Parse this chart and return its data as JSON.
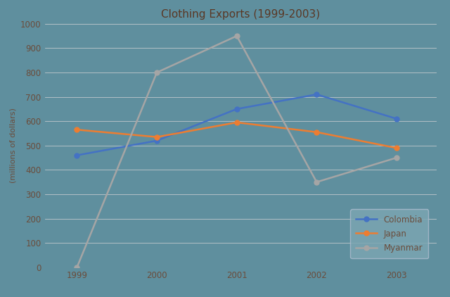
{
  "title": "Clothing Exports (1999-2003)",
  "ylabel": "(millions of dollars)",
  "years": [
    1999,
    2000,
    2001,
    2002,
    2003
  ],
  "series": {
    "Colombia": {
      "values": [
        460,
        520,
        650,
        710,
        610
      ],
      "color": "#4472c4",
      "marker": "o"
    },
    "Japan": {
      "values": [
        565,
        535,
        595,
        555,
        490
      ],
      "color": "#ed7d31",
      "marker": "o"
    },
    "Myanmar": {
      "values": [
        0,
        800,
        950,
        350,
        450
      ],
      "color": "#a5a5a5",
      "marker": "o"
    }
  },
  "ylim": [
    0,
    1000
  ],
  "yticks": [
    0,
    100,
    200,
    300,
    400,
    500,
    600,
    700,
    800,
    900,
    1000
  ],
  "background_color": "#5f8f9e",
  "grid_color": "#c0c8cc",
  "title_color": "#5a3825",
  "tick_color": "#6b4c3b",
  "legend_bg": "#7ba5b2",
  "legend_edge": "#aabbcc"
}
